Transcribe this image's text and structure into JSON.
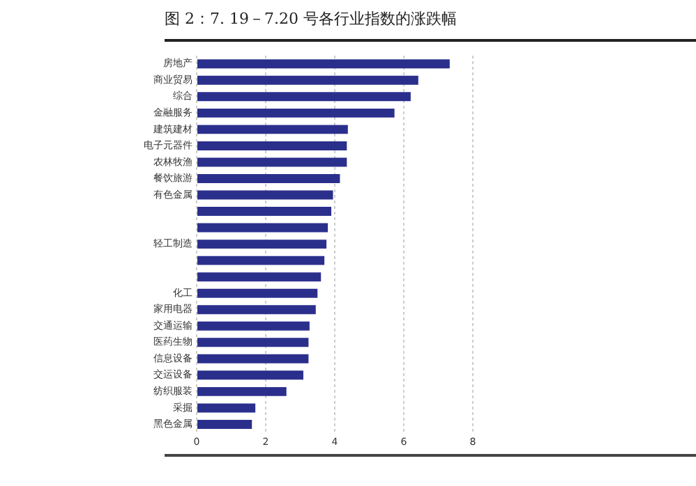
{
  "chart_data": {
    "type": "bar",
    "orientation": "horizontal",
    "title": "图 2：7. 19－7.20 号各行业指数的涨跌幅",
    "categories": [
      "房地产",
      "商业贸易",
      "综合",
      "金融服务",
      "建筑建材",
      "电子元器件",
      "农林牧渔",
      "餐饮旅游",
      "有色金属",
      null,
      null,
      "轻工制造",
      null,
      null,
      "化工",
      "家用电器",
      "交通运输",
      "医药生物",
      "信息设备",
      "交运设备",
      "纺织服装",
      "采掘",
      "黑色金属"
    ],
    "values": [
      7.33,
      6.42,
      6.2,
      5.73,
      4.38,
      4.35,
      4.35,
      4.15,
      3.95,
      3.9,
      3.8,
      3.76,
      3.7,
      3.6,
      3.5,
      3.45,
      3.27,
      3.24,
      3.24,
      3.09,
      2.6,
      1.7,
      1.6
    ],
    "color": "#2b2f8c",
    "xlim": [
      0,
      8
    ],
    "xticks": [
      0,
      2,
      4,
      6,
      8
    ],
    "grid": "x",
    "legend": false
  }
}
